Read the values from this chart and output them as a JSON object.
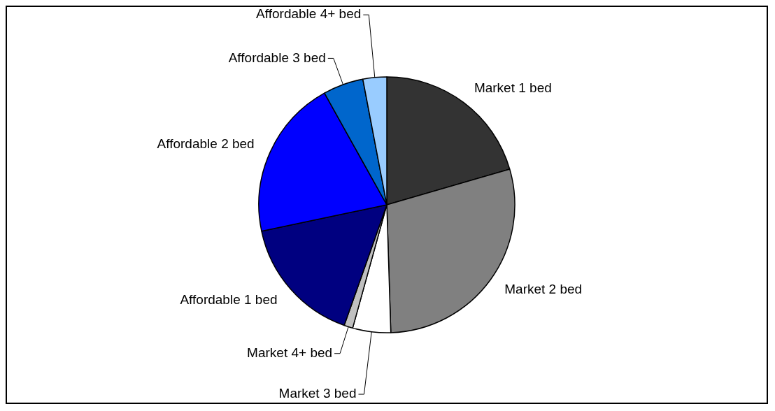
{
  "chart_data": {
    "type": "pie",
    "categories": [
      "Market 1 bed",
      "Market 2 bed",
      "Market 3 bed",
      "Market 4+ bed",
      "Affordable 1 bed",
      "Affordable 2 bed",
      "Affordable 3 bed",
      "Affordable 4+ bed"
    ],
    "values": [
      20.5,
      29.0,
      4.8,
      1.1,
      16.3,
      20.2,
      5.1,
      3.0
    ],
    "colors": [
      "#333333",
      "#808080",
      "#ffffff",
      "#c0c0c0",
      "#000080",
      "#0000ff",
      "#0066cc",
      "#99ccff"
    ],
    "legend": false
  }
}
